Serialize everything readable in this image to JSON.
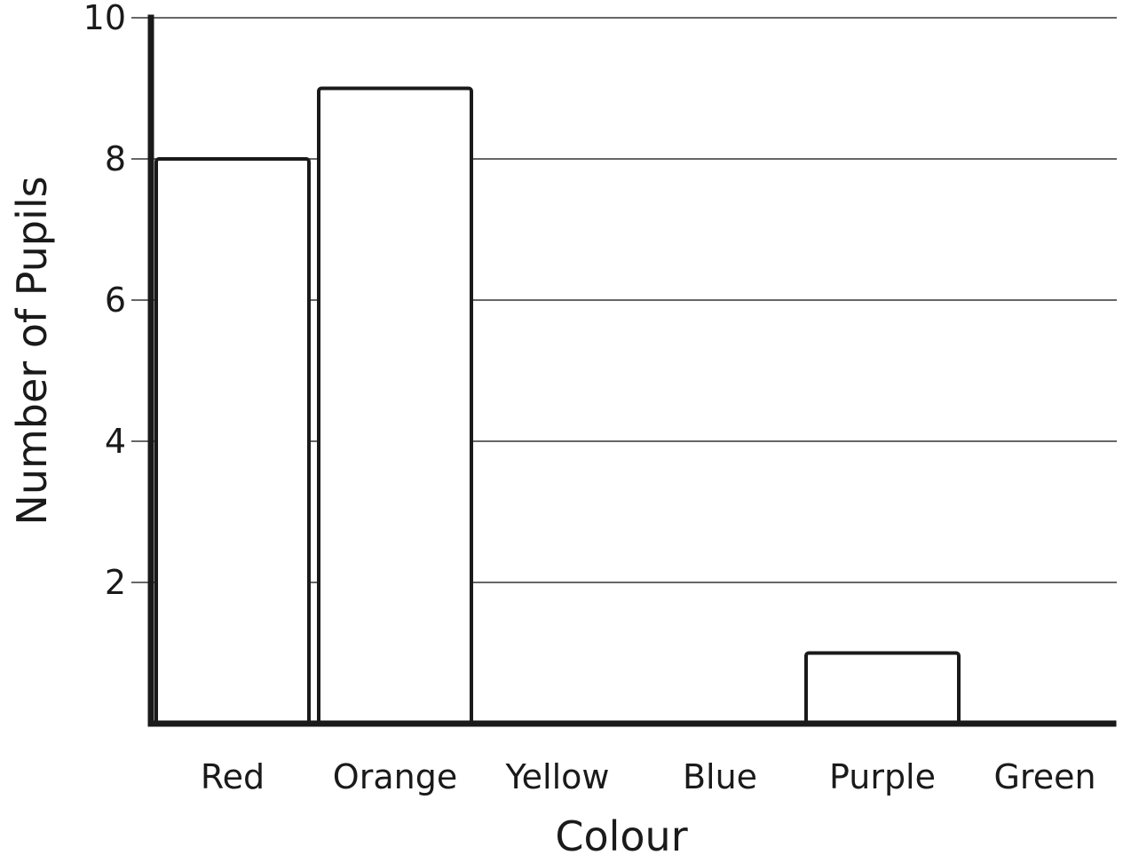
{
  "chart_data": {
    "type": "bar",
    "title": "",
    "xlabel": "Colour",
    "ylabel": "Number of Pupils",
    "categories": [
      "Red",
      "Orange",
      "Yellow",
      "Blue",
      "Purple",
      "Green"
    ],
    "values": [
      8,
      9,
      0,
      0,
      1,
      0
    ],
    "ylim": [
      0,
      10
    ],
    "yticks": [
      2,
      4,
      6,
      8,
      10
    ],
    "ytick_labels": [
      "2",
      "4",
      "6",
      "8",
      "10"
    ],
    "grid": true,
    "legend": "none",
    "colors": {
      "bar_fill": "#ffffff",
      "bar_stroke": "#1a1a1a",
      "axis": "#1a1a1a",
      "grid": "#333333"
    }
  }
}
